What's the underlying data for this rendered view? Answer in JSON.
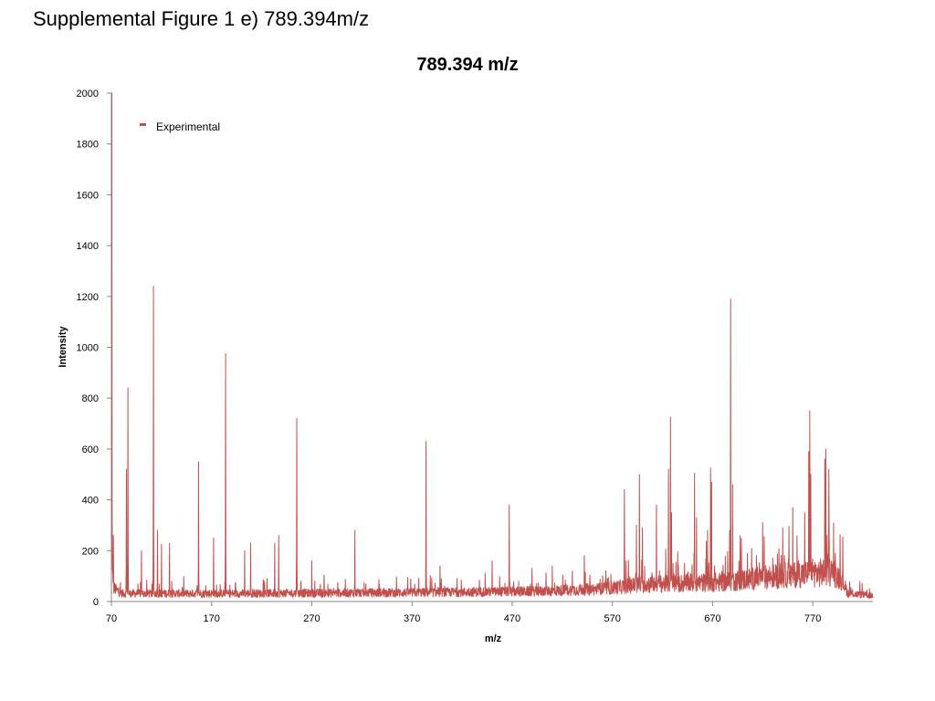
{
  "slide": {
    "title": "Supplemental Figure 1 e) 789.394m/z"
  },
  "colors": {
    "series": "#c0504d",
    "axis": "#868686"
  },
  "chart_data": {
    "type": "line",
    "title": "789.394 m/z",
    "xlabel": "m/z",
    "ylabel": "Intensity",
    "xlim": [
      70,
      830
    ],
    "ylim": [
      0,
      2000
    ],
    "x_ticks": [
      70,
      170,
      270,
      370,
      470,
      570,
      670,
      770
    ],
    "y_ticks": [
      0,
      200,
      400,
      600,
      800,
      1000,
      1200,
      1400,
      1600,
      1800,
      2000
    ],
    "grid": false,
    "legend": {
      "position": "top-left",
      "entries": [
        "Experimental"
      ]
    },
    "series": [
      {
        "name": "Experimental",
        "baseline": [
          [
            70,
            180
          ],
          [
            72,
            60
          ],
          [
            80,
            35
          ],
          [
            200,
            35
          ],
          [
            400,
            40
          ],
          [
            500,
            45
          ],
          [
            560,
            55
          ],
          [
            600,
            75
          ],
          [
            680,
            85
          ],
          [
            730,
            110
          ],
          [
            790,
            130
          ],
          [
            800,
            90
          ],
          [
            805,
            35
          ],
          [
            830,
            25
          ]
        ],
        "peaks": [
          [
            70.5,
            2000
          ],
          [
            72,
            260
          ],
          [
            85,
            520
          ],
          [
            86.5,
            840
          ],
          [
            100,
            200
          ],
          [
            112,
            1240
          ],
          [
            116,
            280
          ],
          [
            120,
            225
          ],
          [
            128,
            230
          ],
          [
            157,
            550
          ],
          [
            172,
            250
          ],
          [
            184,
            975
          ],
          [
            203,
            200
          ],
          [
            209,
            230
          ],
          [
            233,
            230
          ],
          [
            237,
            260
          ],
          [
            255,
            720
          ],
          [
            270,
            160
          ],
          [
            313,
            280
          ],
          [
            384,
            630
          ],
          [
            398,
            140
          ],
          [
            450,
            160
          ],
          [
            467,
            380
          ],
          [
            510,
            140
          ],
          [
            542,
            180
          ],
          [
            582,
            440
          ],
          [
            594,
            300
          ],
          [
            597,
            500
          ],
          [
            600,
            290
          ],
          [
            614,
            380
          ],
          [
            626,
            520
          ],
          [
            628,
            725
          ],
          [
            629,
            350
          ],
          [
            652,
            505
          ],
          [
            654,
            330
          ],
          [
            665,
            280
          ],
          [
            668,
            525
          ],
          [
            669,
            470
          ],
          [
            687,
            280
          ],
          [
            688,
            1190
          ],
          [
            690,
            460
          ],
          [
            720,
            310
          ],
          [
            740,
            290
          ],
          [
            750,
            370
          ],
          [
            762,
            350
          ],
          [
            766,
            590
          ],
          [
            767,
            750
          ],
          [
            768,
            500
          ],
          [
            782,
            560
          ],
          [
            783,
            600
          ],
          [
            786,
            520
          ]
        ]
      }
    ]
  }
}
